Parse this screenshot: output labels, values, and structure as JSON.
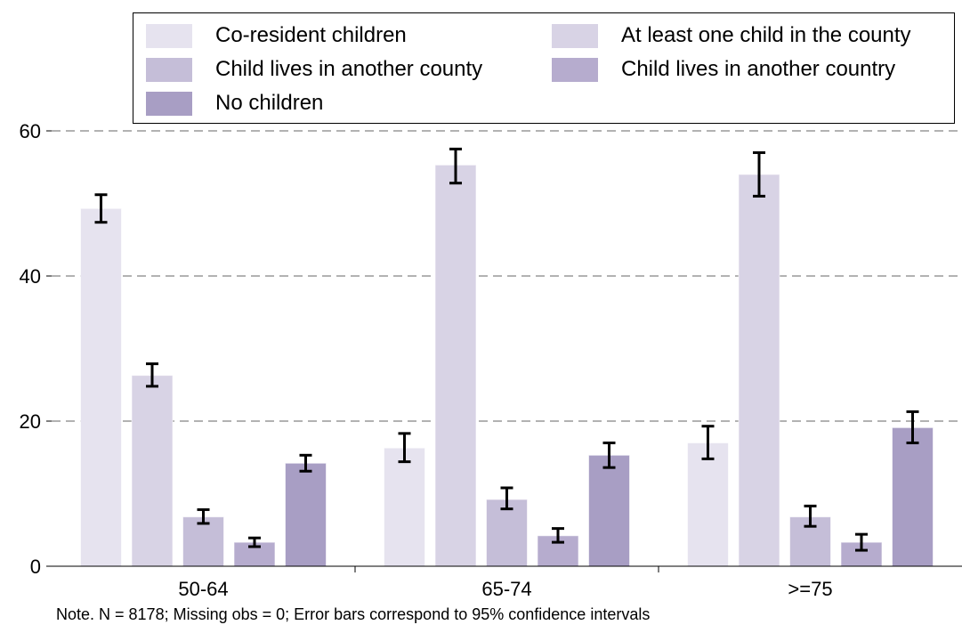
{
  "chart_data": {
    "type": "bar",
    "categories": [
      "50-64",
      "65-74",
      ">=75"
    ],
    "series": [
      {
        "name": "Co-resident children",
        "color": "#e6e3ef",
        "values": [
          49.3,
          16.3,
          17.0
        ],
        "ci_low": [
          47.4,
          14.4,
          14.8
        ],
        "ci_high": [
          51.2,
          18.3,
          19.3
        ]
      },
      {
        "name": "At least one child in the county",
        "color": "#d8d3e5",
        "values": [
          26.3,
          55.3,
          54.0
        ],
        "ci_low": [
          24.8,
          52.8,
          51.0
        ],
        "ci_high": [
          27.9,
          57.5,
          57.0
        ]
      },
      {
        "name": "Child lives in another county",
        "color": "#c5bed8",
        "values": [
          6.8,
          9.2,
          6.8
        ],
        "ci_low": [
          5.9,
          7.9,
          5.5
        ],
        "ci_high": [
          7.8,
          10.8,
          8.3
        ]
      },
      {
        "name": "Child lives in another country",
        "color": "#b6acce",
        "values": [
          3.3,
          4.2,
          3.3
        ],
        "ci_low": [
          2.7,
          3.3,
          2.2
        ],
        "ci_high": [
          3.9,
          5.2,
          4.4
        ]
      },
      {
        "name": "No children",
        "color": "#a89ec4",
        "values": [
          14.2,
          15.3,
          19.1
        ],
        "ci_low": [
          13.1,
          13.6,
          17.0
        ],
        "ci_high": [
          15.3,
          17.0,
          21.3
        ]
      }
    ],
    "ylim": [
      0,
      60
    ],
    "yticks": [
      0,
      20,
      40,
      60
    ],
    "grid": true,
    "legend_position": "top",
    "note": "Note. N = 8178; Missing obs = 0; Error bars correspond to 95% confidence intervals"
  }
}
